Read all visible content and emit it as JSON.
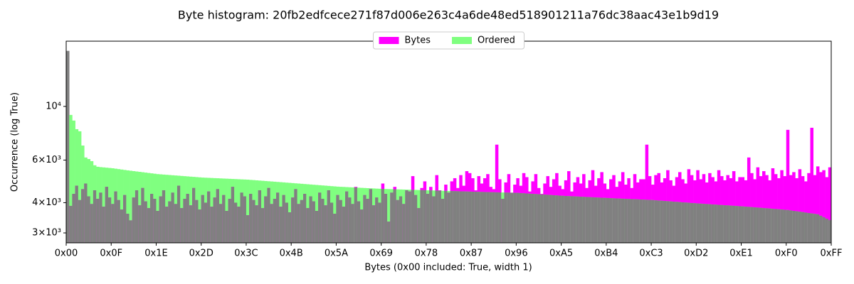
{
  "chart_data": {
    "type": "histogram",
    "title": "Byte histogram: 20fb2edfcece271f87d006e263c4a6de48ed518901211a76dc38aac43e1b9d19",
    "x_label": "Bytes (0x00 included: True, width 1)",
    "y_label": "Occurrence (log True)",
    "log_y": true,
    "legend": "upper center",
    "overlap_color": "#808080",
    "xlim": [
      0,
      255
    ],
    "ylim": [
      2730,
      18600
    ],
    "xticks": [
      {
        "value": 0,
        "label": "0x00"
      },
      {
        "value": 15,
        "label": "0x0F"
      },
      {
        "value": 30,
        "label": "0x1E"
      },
      {
        "value": 45,
        "label": "0x2D"
      },
      {
        "value": 60,
        "label": "0x3C"
      },
      {
        "value": 75,
        "label": "0x4B"
      },
      {
        "value": 90,
        "label": "0x5A"
      },
      {
        "value": 105,
        "label": "0x69"
      },
      {
        "value": 120,
        "label": "0x78"
      },
      {
        "value": 135,
        "label": "0x87"
      },
      {
        "value": 150,
        "label": "0x96"
      },
      {
        "value": 165,
        "label": "0xA5"
      },
      {
        "value": 180,
        "label": "0xB4"
      },
      {
        "value": 195,
        "label": "0xC3"
      },
      {
        "value": 210,
        "label": "0xD2"
      },
      {
        "value": 225,
        "label": "0xE1"
      },
      {
        "value": 240,
        "label": "0xF0"
      },
      {
        "value": 255,
        "label": "0xFF"
      }
    ],
    "yticks": [
      {
        "value": 3000,
        "label": "3×10³"
      },
      {
        "value": 4000,
        "label": "4×10³"
      },
      {
        "value": 6000,
        "label": "6×10³"
      },
      {
        "value": 10000,
        "label": "10⁴"
      }
    ],
    "series": [
      {
        "name": "Bytes",
        "color": "#ff00ff",
        "values": [
          16950,
          3880,
          4350,
          4700,
          4100,
          4550,
          4800,
          4250,
          3950,
          4500,
          4150,
          4400,
          3850,
          4650,
          4200,
          3950,
          4450,
          4100,
          3750,
          4300,
          3600,
          3380,
          4200,
          4500,
          3900,
          4600,
          4050,
          3800,
          4350,
          4150,
          3700,
          4250,
          4500,
          3850,
          4050,
          4400,
          3950,
          4700,
          3800,
          4150,
          4350,
          3900,
          4600,
          4100,
          3750,
          4300,
          4000,
          4450,
          3850,
          4200,
          4550,
          3950,
          4300,
          3700,
          4150,
          4650,
          4000,
          3850,
          4400,
          4250,
          3550,
          4350,
          4100,
          3900,
          4500,
          3800,
          4250,
          4600,
          3950,
          4150,
          4400,
          3850,
          4300,
          4000,
          3650,
          4200,
          4550,
          3950,
          4100,
          4350,
          3800,
          4250,
          4050,
          3700,
          4400,
          4150,
          3900,
          4500,
          4000,
          3600,
          4300,
          4100,
          3850,
          4450,
          4200,
          3950,
          4650,
          4050,
          3750,
          4300,
          4150,
          4550,
          3900,
          4200,
          4000,
          4800,
          4350,
          3340,
          4400,
          4650,
          4100,
          4250,
          3950,
          4500,
          4450,
          5150,
          4300,
          3800,
          4600,
          4900,
          4350,
          4650,
          4250,
          5200,
          4500,
          4150,
          4750,
          4400,
          4900,
          5050,
          4600,
          5200,
          4700,
          5400,
          5300,
          5050,
          4500,
          5150,
          4800,
          5050,
          5250,
          4650,
          4550,
          6950,
          5000,
          4150,
          4850,
          5250,
          4400,
          4750,
          5050,
          4700,
          5300,
          5100,
          4450,
          4900,
          5250,
          4600,
          4350,
          4800,
          5150,
          4650,
          5000,
          5300,
          4700,
          4550,
          4950,
          5400,
          4450,
          4850,
          5100,
          4800,
          5250,
          4600,
          4950,
          5450,
          4700,
          5050,
          5350,
          4800,
          4550,
          5000,
          5200,
          4650,
          4900,
          5350,
          4750,
          5050,
          4600,
          5250,
          4850,
          5000,
          5000,
          6950,
          5150,
          4750,
          5200,
          5300,
          4850,
          5050,
          5450,
          4950,
          4700,
          5100,
          5350,
          5000,
          4800,
          5500,
          5200,
          4950,
          5450,
          5000,
          5250,
          4850,
          5300,
          5100,
          4900,
          5450,
          5150,
          4950,
          5200,
          5050,
          5400,
          4900,
          5100,
          5100,
          4950,
          6150,
          5300,
          5000,
          5600,
          5150,
          5400,
          5200,
          4950,
          5550,
          5250,
          5050,
          5450,
          5150,
          8000,
          5200,
          5350,
          5050,
          5500,
          5150,
          4900,
          5300,
          8160,
          5200,
          5650,
          5350,
          5450,
          5100,
          5600,
          5950
        ]
      },
      {
        "name": "Ordered",
        "color": "#80ff80",
        "values": [
          16950,
          9220,
          8740,
          8050,
          7890,
          6890,
          6150,
          6060,
          5940,
          5710,
          5630,
          5610,
          5595,
          5580,
          5565,
          5550,
          5528,
          5506,
          5484,
          5462,
          5440,
          5421,
          5402,
          5383,
          5364,
          5345,
          5326,
          5307,
          5288,
          5269,
          5250,
          5239,
          5227,
          5216,
          5205,
          5193,
          5182,
          5171,
          5159,
          5148,
          5137,
          5125,
          5114,
          5103,
          5091,
          5080,
          5073,
          5067,
          5060,
          5053,
          5047,
          5040,
          5033,
          5027,
          5020,
          5013,
          5007,
          5000,
          4993,
          4987,
          4980,
          4969,
          4959,
          4948,
          4937,
          4927,
          4916,
          4905,
          4895,
          4884,
          4873,
          4863,
          4852,
          4841,
          4831,
          4820,
          4809,
          4799,
          4788,
          4777,
          4767,
          4756,
          4745,
          4735,
          4724,
          4713,
          4703,
          4692,
          4681,
          4671,
          4660,
          4653,
          4647,
          4640,
          4633,
          4627,
          4620,
          4613,
          4607,
          4600,
          4593,
          4587,
          4580,
          4573,
          4567,
          4560,
          4556,
          4552,
          4548,
          4544,
          4540,
          4536,
          4532,
          4528,
          4524,
          4520,
          4516,
          4512,
          4508,
          4504,
          4500,
          4496,
          4492,
          4488,
          4484,
          4480,
          4476,
          4472,
          4468,
          4464,
          4460,
          4456,
          4452,
          4448,
          4444,
          4440,
          4437,
          4433,
          4430,
          4427,
          4423,
          4420,
          4417,
          4413,
          4410,
          4407,
          4403,
          4400,
          4397,
          4393,
          4390,
          4382,
          4374,
          4366,
          4358,
          4350,
          4342,
          4334,
          4326,
          4318,
          4310,
          4302,
          4294,
          4286,
          4278,
          4270,
          4264,
          4258,
          4252,
          4246,
          4240,
          4234,
          4228,
          4222,
          4216,
          4210,
          4204,
          4198,
          4192,
          4186,
          4180,
          4175,
          4169,
          4164,
          4159,
          4153,
          4148,
          4143,
          4137,
          4132,
          4127,
          4121,
          4116,
          4111,
          4105,
          4100,
          4091,
          4083,
          4074,
          4065,
          4057,
          4048,
          4039,
          4031,
          4022,
          4013,
          4005,
          3996,
          3987,
          3979,
          3970,
          3963,
          3955,
          3948,
          3941,
          3933,
          3926,
          3919,
          3911,
          3904,
          3897,
          3889,
          3882,
          3875,
          3867,
          3860,
          3851,
          3843,
          3834,
          3825,
          3817,
          3808,
          3799,
          3791,
          3782,
          3773,
          3765,
          3756,
          3747,
          3739,
          3730,
          3715,
          3700,
          3685,
          3670,
          3655,
          3640,
          3625,
          3610,
          3595,
          3580,
          3532,
          3484,
          3436,
          3388,
          3340
        ]
      }
    ]
  }
}
